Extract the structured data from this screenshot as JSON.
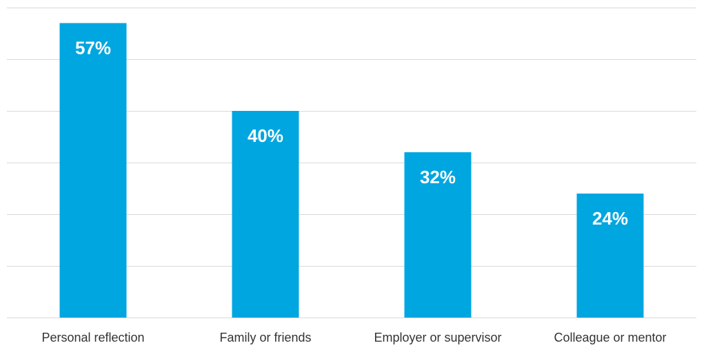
{
  "chart_data": {
    "type": "bar",
    "categories": [
      "Personal reflection",
      "Family or friends",
      "Employer or supervisor",
      "Colleague or mentor"
    ],
    "values": [
      57,
      40,
      32,
      24
    ],
    "value_labels": [
      "57%",
      "40%",
      "32%",
      "24%"
    ],
    "unit": "%",
    "ylim": [
      0,
      60
    ],
    "grid": true,
    "legend": "none",
    "bar_color": "#00a6e0"
  }
}
